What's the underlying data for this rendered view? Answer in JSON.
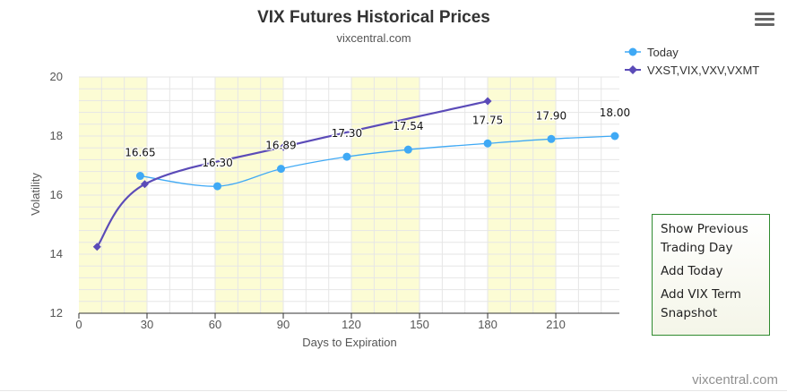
{
  "colors": {
    "today": "#3fa9f5",
    "term": "#5b4bb8",
    "band": "#fcfcd4",
    "grid": "#e6e6e6",
    "panel_border": "#2f8a2f"
  },
  "menu": {
    "icon": "hamburger-menu-icon"
  },
  "actions": {
    "show_previous": "Show Previous Trading Day",
    "add_today": "Add Today",
    "add_vix_term": "Add VIX Term Snapshot"
  },
  "watermark": "vixcentral.com",
  "chart_data": {
    "type": "line",
    "title": "VIX Futures Historical Prices",
    "subtitle": "vixcentral.com",
    "xlabel": "Days to Expiration",
    "ylabel": "Volatility",
    "xlim": [
      0,
      238
    ],
    "ylim": [
      12,
      20
    ],
    "x_ticks": [
      0,
      30,
      60,
      90,
      120,
      150,
      180,
      210
    ],
    "y_ticks": [
      12,
      14,
      16,
      18,
      20
    ],
    "alternate_bands_every": 30,
    "grid": true,
    "legend_position": "top-right",
    "series": [
      {
        "name": "Today",
        "marker": "circle",
        "x": [
          27,
          61,
          89,
          118,
          145,
          180,
          208,
          236
        ],
        "values": [
          16.65,
          16.3,
          16.89,
          17.3,
          17.54,
          17.75,
          17.9,
          18.0
        ],
        "labels": [
          "16.65",
          "16.30",
          "16.89",
          "17.30",
          "17.54",
          "17.75",
          "17.90",
          "18.00"
        ]
      },
      {
        "name": "VXST,VIX,VXV,VXMT",
        "marker": "diamond",
        "x": [
          8,
          29,
          90,
          180
        ],
        "values": [
          14.25,
          16.37,
          17.63,
          19.18
        ]
      }
    ]
  }
}
